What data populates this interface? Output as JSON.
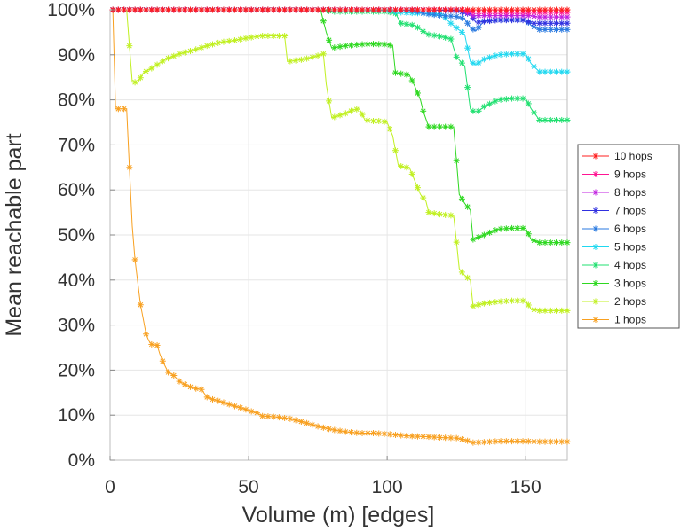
{
  "chart_data": {
    "type": "line",
    "title": "",
    "xlabel": "Volume (m) [edges]",
    "ylabel": "Mean reachable part",
    "xlim": [
      0,
      165
    ],
    "ylim": [
      0,
      100
    ],
    "x_ticks": [
      0,
      50,
      100,
      150
    ],
    "x_tick_labels": [
      "0",
      "50",
      "100",
      "150"
    ],
    "y_ticks": [
      0,
      10,
      20,
      30,
      40,
      50,
      60,
      70,
      80,
      90,
      100
    ],
    "y_tick_labels": [
      "0%",
      "10%",
      "20%",
      "30%",
      "40%",
      "50%",
      "60%",
      "70%",
      "80%",
      "90%",
      "100%"
    ],
    "grid": true,
    "legend_position": "right",
    "marker": "asterisk",
    "series": [
      {
        "name": "10 hops",
        "color": "#ff1f1f",
        "points": [
          [
            1,
            100
          ],
          [
            165,
            100
          ]
        ]
      },
      {
        "name": "9 hops",
        "color": "#ff1493",
        "points": [
          [
            1,
            100
          ],
          [
            127,
            100
          ],
          [
            131,
            99.5
          ],
          [
            165,
            99.4
          ]
        ]
      },
      {
        "name": "8 hops",
        "color": "#c020e0",
        "points": [
          [
            1,
            100
          ],
          [
            127,
            100
          ],
          [
            131,
            98.7
          ],
          [
            140,
            98.7
          ],
          [
            152,
            98.7
          ],
          [
            154,
            98.4
          ],
          [
            165,
            98.4
          ]
        ]
      },
      {
        "name": "7 hops",
        "color": "#3030e0",
        "points": [
          [
            1,
            100
          ],
          [
            115,
            100
          ],
          [
            125,
            99.8
          ],
          [
            130,
            99.0
          ],
          [
            132,
            97.2
          ],
          [
            140,
            97.7
          ],
          [
            150,
            97.7
          ],
          [
            152,
            97.0
          ],
          [
            165,
            97.0
          ]
        ]
      },
      {
        "name": "6 hops",
        "color": "#2a7ae0",
        "points": [
          [
            1,
            100
          ],
          [
            105,
            100
          ],
          [
            110,
            99.8
          ],
          [
            113,
            99.2
          ],
          [
            118,
            98.8
          ],
          [
            125,
            98.5
          ],
          [
            128,
            98.0
          ],
          [
            130,
            96.0
          ],
          [
            132,
            95.3
          ],
          [
            135,
            97.5
          ],
          [
            140,
            97.8
          ],
          [
            150,
            97.8
          ],
          [
            152,
            96.5
          ],
          [
            155,
            95.6
          ],
          [
            165,
            95.6
          ]
        ]
      },
      {
        "name": "5 hops",
        "color": "#20d8f0",
        "points": [
          [
            1,
            100
          ],
          [
            90,
            100
          ],
          [
            100,
            99.9
          ],
          [
            103,
            99.5
          ],
          [
            108,
            99.3
          ],
          [
            115,
            99.2
          ],
          [
            120,
            99.0
          ],
          [
            122,
            97.5
          ],
          [
            125,
            96.0
          ],
          [
            128,
            94.5
          ],
          [
            130,
            88.5
          ],
          [
            132,
            87.8
          ],
          [
            135,
            89.0
          ],
          [
            140,
            90.0
          ],
          [
            145,
            90.2
          ],
          [
            150,
            90.2
          ],
          [
            152,
            88.0
          ],
          [
            155,
            86.2
          ],
          [
            165,
            86.2
          ]
        ]
      },
      {
        "name": "4 hops",
        "color": "#20e070",
        "points": [
          [
            1,
            100
          ],
          [
            77,
            100
          ],
          [
            80,
            99.6
          ],
          [
            90,
            99.6
          ],
          [
            100,
            99.6
          ],
          [
            103,
            99.2
          ],
          [
            105,
            97.0
          ],
          [
            110,
            96.5
          ],
          [
            113,
            95.2
          ],
          [
            115,
            94.5
          ],
          [
            120,
            94.0
          ],
          [
            123,
            93.5
          ],
          [
            125,
            89.5
          ],
          [
            128,
            87.5
          ],
          [
            130,
            78.0
          ],
          [
            132,
            77.0
          ],
          [
            135,
            78.5
          ],
          [
            140,
            80.0
          ],
          [
            145,
            80.3
          ],
          [
            150,
            80.3
          ],
          [
            152,
            78.0
          ],
          [
            155,
            75.5
          ],
          [
            165,
            75.5
          ]
        ]
      },
      {
        "name": "3 hops",
        "color": "#2ed820",
        "points": [
          [
            1,
            100
          ],
          [
            76,
            100
          ],
          [
            78,
            95.0
          ],
          [
            80,
            91.5
          ],
          [
            85,
            92.0
          ],
          [
            90,
            92.3
          ],
          [
            95,
            92.4
          ],
          [
            100,
            92.3
          ],
          [
            102,
            92.0
          ],
          [
            103,
            86.0
          ],
          [
            108,
            85.5
          ],
          [
            110,
            83.0
          ],
          [
            112,
            80.0
          ],
          [
            113,
            77.5
          ],
          [
            115,
            74.0
          ],
          [
            120,
            74.0
          ],
          [
            124,
            74.0
          ],
          [
            126,
            59.0
          ],
          [
            128,
            57.0
          ],
          [
            130,
            55.5
          ],
          [
            131,
            49.0
          ],
          [
            135,
            50.0
          ],
          [
            140,
            51.3
          ],
          [
            145,
            51.5
          ],
          [
            150,
            51.5
          ],
          [
            152,
            49.0
          ],
          [
            155,
            48.3
          ],
          [
            165,
            48.3
          ]
        ]
      },
      {
        "name": "2 hops",
        "color": "#c0f020",
        "points": [
          [
            1,
            100
          ],
          [
            6,
            100
          ],
          [
            8,
            84.0
          ],
          [
            10,
            83.8
          ],
          [
            12,
            86.0
          ],
          [
            15,
            87.0
          ],
          [
            20,
            89.0
          ],
          [
            25,
            90.2
          ],
          [
            30,
            91.0
          ],
          [
            35,
            92.0
          ],
          [
            40,
            92.8
          ],
          [
            45,
            93.2
          ],
          [
            50,
            93.8
          ],
          [
            55,
            94.2
          ],
          [
            60,
            94.2
          ],
          [
            63,
            94.2
          ],
          [
            64,
            88.5
          ],
          [
            70,
            89.0
          ],
          [
            75,
            89.8
          ],
          [
            77,
            90.2
          ],
          [
            78,
            83.5
          ],
          [
            80,
            76.0
          ],
          [
            85,
            77.0
          ],
          [
            88,
            77.8
          ],
          [
            90,
            78.0
          ],
          [
            92,
            75.5
          ],
          [
            95,
            75.3
          ],
          [
            98,
            75.3
          ],
          [
            100,
            75.0
          ],
          [
            102,
            72.0
          ],
          [
            104,
            65.5
          ],
          [
            106,
            65.0
          ],
          [
            108,
            65.0
          ],
          [
            110,
            62.0
          ],
          [
            112,
            59.0
          ],
          [
            114,
            57.5
          ],
          [
            115,
            55.0
          ],
          [
            120,
            54.5
          ],
          [
            124,
            54.3
          ],
          [
            126,
            42.5
          ],
          [
            128,
            41.0
          ],
          [
            130,
            40.0
          ],
          [
            131,
            34.2
          ],
          [
            135,
            34.8
          ],
          [
            140,
            35.2
          ],
          [
            145,
            35.4
          ],
          [
            150,
            35.4
          ],
          [
            152,
            33.5
          ],
          [
            155,
            33.2
          ],
          [
            165,
            33.2
          ]
        ]
      },
      {
        "name": "1 hops",
        "color": "#f8a020",
        "points": [
          [
            1,
            100
          ],
          [
            2,
            78.0
          ],
          [
            4,
            78.0
          ],
          [
            6,
            78.0
          ],
          [
            8,
            52.0
          ],
          [
            9,
            44.5
          ],
          [
            11,
            34.5
          ],
          [
            13,
            28.0
          ],
          [
            14,
            26.5
          ],
          [
            15,
            25.7
          ],
          [
            17,
            25.5
          ],
          [
            18,
            23.5
          ],
          [
            19,
            22.0
          ],
          [
            21,
            19.5
          ],
          [
            23,
            18.8
          ],
          [
            25,
            17.5
          ],
          [
            27,
            16.8
          ],
          [
            30,
            16.0
          ],
          [
            33,
            15.7
          ],
          [
            35,
            14.0
          ],
          [
            37,
            13.5
          ],
          [
            40,
            13.0
          ],
          [
            45,
            12.0
          ],
          [
            48,
            11.5
          ],
          [
            50,
            11.0
          ],
          [
            53,
            10.5
          ],
          [
            55,
            9.8
          ],
          [
            60,
            9.6
          ],
          [
            65,
            9.2
          ],
          [
            70,
            8.4
          ],
          [
            75,
            7.5
          ],
          [
            80,
            6.8
          ],
          [
            85,
            6.3
          ],
          [
            90,
            6.0
          ],
          [
            95,
            6.0
          ],
          [
            100,
            5.8
          ],
          [
            105,
            5.5
          ],
          [
            110,
            5.3
          ],
          [
            115,
            5.2
          ],
          [
            120,
            5.0
          ],
          [
            125,
            4.9
          ],
          [
            128,
            4.5
          ],
          [
            131,
            3.9
          ],
          [
            135,
            4.0
          ],
          [
            140,
            4.2
          ],
          [
            145,
            4.2
          ],
          [
            150,
            4.2
          ],
          [
            155,
            4.1
          ],
          [
            160,
            4.1
          ],
          [
            165,
            4.1
          ]
        ]
      }
    ]
  }
}
